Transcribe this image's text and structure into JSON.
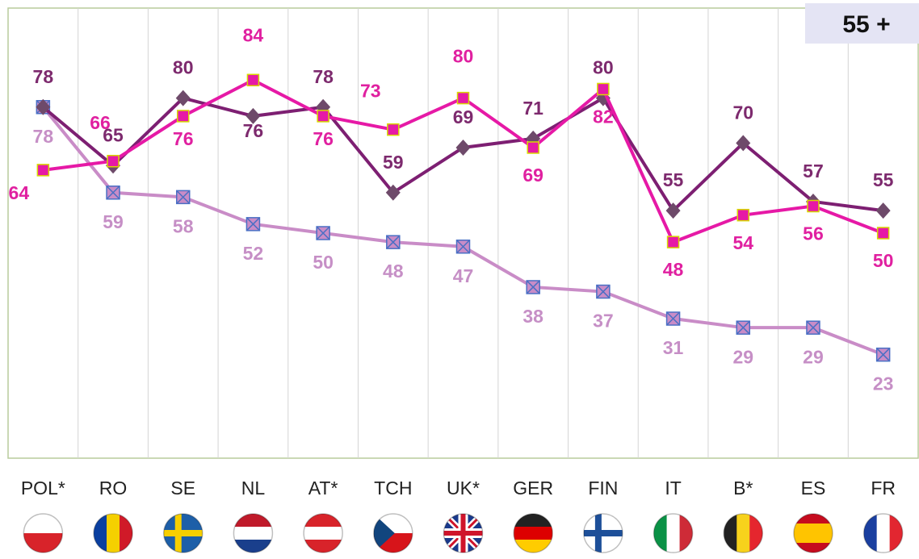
{
  "chart_data": {
    "type": "line",
    "title": "55 +",
    "categories": [
      "POL*",
      "RO",
      "SE",
      "NL",
      "AT*",
      "TCH",
      "UK*",
      "GER",
      "FIN",
      "IT",
      "B*",
      "ES",
      "FR"
    ],
    "series": [
      {
        "color": "#7d1f72",
        "marker": "diamond",
        "label_color": "#7d2a6e",
        "values": [
          78,
          65,
          80,
          76,
          78,
          59,
          69,
          71,
          80,
          55,
          70,
          57,
          55
        ]
      },
      {
        "color": "#e619a6",
        "marker": "square",
        "label_color": "#e020a0",
        "values": [
          64,
          66,
          76,
          84,
          76,
          73,
          80,
          69,
          82,
          48,
          54,
          56,
          50
        ]
      },
      {
        "color": "#c98cc7",
        "marker": "cross",
        "label_color": "#c68fc6",
        "values": [
          78,
          59,
          58,
          52,
          50,
          48,
          47,
          38,
          37,
          31,
          29,
          29,
          23
        ]
      }
    ],
    "ylim": [
      0,
      100
    ],
    "grid": true
  }
}
